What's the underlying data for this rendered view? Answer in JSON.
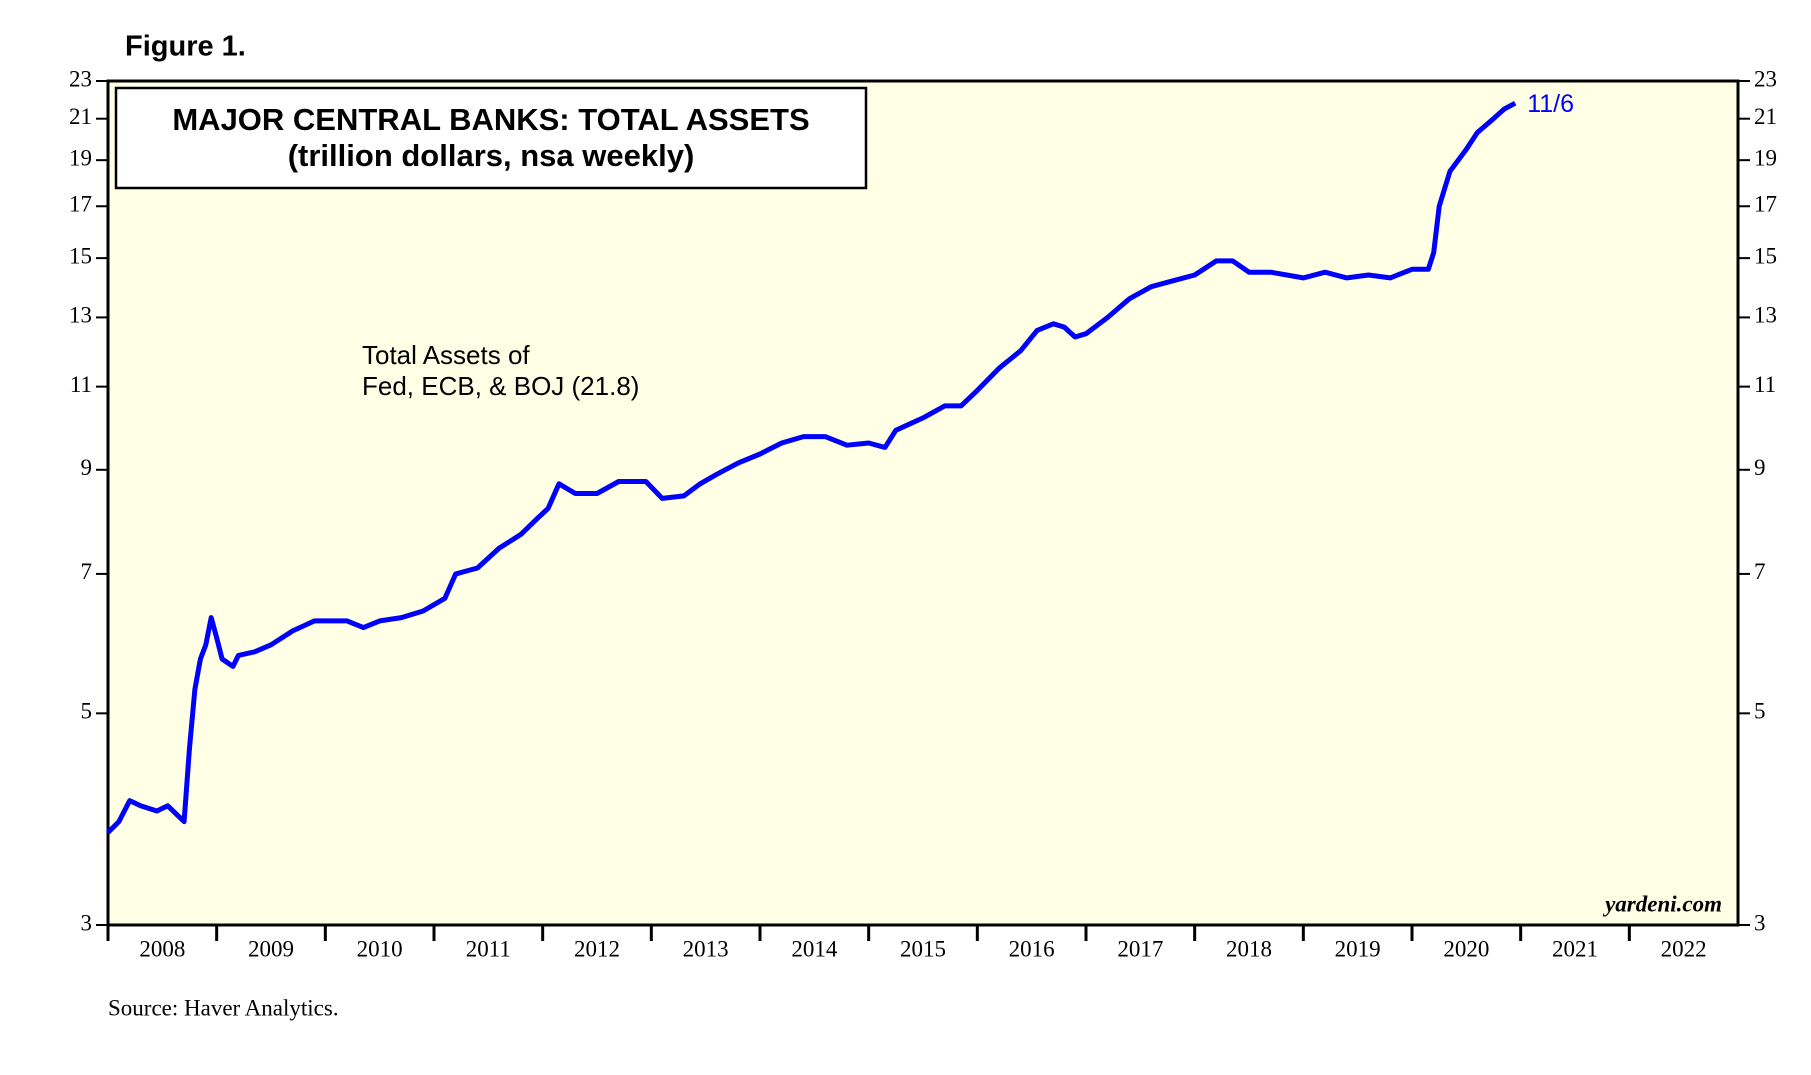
{
  "chart_data": {
    "type": "line",
    "figure_label": "Figure 1.",
    "title": [
      "MAJOR CENTRAL BANKS: TOTAL ASSETS",
      "(trillion dollars, nsa weekly)"
    ],
    "annotation": [
      "Total Assets of",
      "Fed, ECB, & BOJ (21.8)"
    ],
    "end_label": "11/6",
    "watermark": "yardeni.com",
    "source": "Source: Haver Analytics.",
    "log_scale": true,
    "ylim": [
      3,
      23
    ],
    "yticks": [
      3,
      5,
      7,
      9,
      11,
      13,
      15,
      17,
      19,
      21,
      23
    ],
    "xlim": [
      2008,
      2023
    ],
    "xticks": [
      {
        "value": 2008,
        "label": "2008"
      },
      {
        "value": 2009,
        "label": "2009"
      },
      {
        "value": 2010,
        "label": "2010"
      },
      {
        "value": 2011,
        "label": "2011"
      },
      {
        "value": 2012,
        "label": "2012"
      },
      {
        "value": 2013,
        "label": "2013"
      },
      {
        "value": 2014,
        "label": "2014"
      },
      {
        "value": 2015,
        "label": "2015"
      },
      {
        "value": 2016,
        "label": "2016"
      },
      {
        "value": 2017,
        "label": "2017"
      },
      {
        "value": 2018,
        "label": "2018"
      },
      {
        "value": 2019,
        "label": "2019"
      },
      {
        "value": 2020,
        "label": "2020"
      },
      {
        "value": 2021,
        "label": "2021"
      },
      {
        "value": 2022,
        "label": "2022"
      }
    ],
    "x": [
      2008.0,
      2008.1,
      2008.2,
      2008.3,
      2008.45,
      2008.55,
      2008.65,
      2008.7,
      2008.75,
      2008.8,
      2008.85,
      2008.9,
      2008.95,
      2009.0,
      2009.05,
      2009.15,
      2009.2,
      2009.35,
      2009.5,
      2009.7,
      2009.9,
      2010.0,
      2010.2,
      2010.35,
      2010.5,
      2010.7,
      2010.9,
      2011.1,
      2011.2,
      2011.4,
      2011.6,
      2011.8,
      2011.95,
      2012.05,
      2012.15,
      2012.3,
      2012.5,
      2012.7,
      2012.95,
      2013.1,
      2013.3,
      2013.45,
      2013.6,
      2013.8,
      2014.0,
      2014.2,
      2014.4,
      2014.6,
      2014.8,
      2015.0,
      2015.15,
      2015.25,
      2015.5,
      2015.7,
      2015.85,
      2016.0,
      2016.2,
      2016.4,
      2016.55,
      2016.7,
      2016.8,
      2016.9,
      2017.0,
      2017.2,
      2017.4,
      2017.6,
      2017.8,
      2018.0,
      2018.2,
      2018.35,
      2018.5,
      2018.7,
      2019.0,
      2019.2,
      2019.4,
      2019.6,
      2019.8,
      2020.0,
      2020.15,
      2020.2,
      2020.25,
      2020.35,
      2020.5,
      2020.6,
      2020.75,
      2020.85,
      2020.95
    ],
    "series": [
      {
        "name": "Total Assets",
        "color": "#0000ff",
        "values": [
          3.75,
          3.85,
          4.05,
          4.0,
          3.95,
          4.0,
          3.9,
          3.85,
          4.6,
          5.3,
          5.7,
          5.9,
          6.3,
          6.0,
          5.7,
          5.6,
          5.75,
          5.8,
          5.9,
          6.1,
          6.25,
          6.25,
          6.25,
          6.15,
          6.25,
          6.3,
          6.4,
          6.6,
          7.0,
          7.1,
          7.45,
          7.7,
          8.0,
          8.2,
          8.7,
          8.5,
          8.5,
          8.75,
          8.75,
          8.4,
          8.45,
          8.7,
          8.9,
          9.15,
          9.35,
          9.6,
          9.75,
          9.75,
          9.55,
          9.6,
          9.5,
          9.9,
          10.2,
          10.5,
          10.5,
          10.9,
          11.5,
          12.0,
          12.6,
          12.8,
          12.7,
          12.4,
          12.5,
          13.0,
          13.6,
          14.0,
          14.2,
          14.4,
          14.9,
          14.9,
          14.5,
          14.5,
          14.3,
          14.5,
          14.3,
          14.4,
          14.3,
          14.6,
          14.6,
          15.2,
          17.0,
          18.5,
          19.5,
          20.3,
          21.0,
          21.5,
          21.8
        ]
      }
    ],
    "background": "#ffffe6"
  }
}
